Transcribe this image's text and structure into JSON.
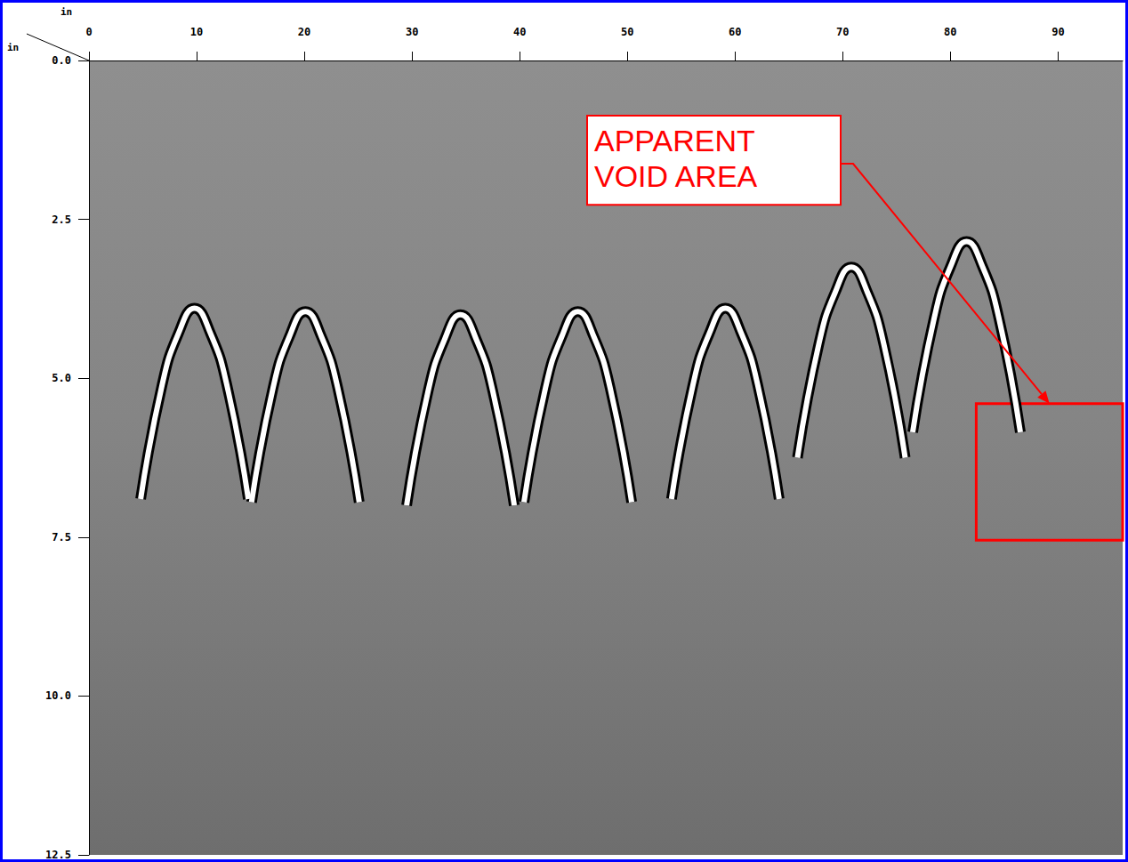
{
  "chart_data": {
    "type": "line",
    "xlabel": "in",
    "ylabel": "in",
    "xlim": [
      0,
      96
    ],
    "xticks": [
      0,
      10,
      20,
      30,
      40,
      50,
      60,
      70,
      80,
      90
    ],
    "ylim": [
      0,
      12.5
    ],
    "yticks": [
      {
        "value": 0,
        "label": "0.0"
      },
      2.5,
      {
        "value": 5,
        "label": "5.0"
      },
      7.5,
      {
        "value": 10,
        "label": "10.0"
      },
      12.5
    ],
    "grid": false,
    "series": [
      {
        "color": "#ffffff",
        "x": [
          4.8,
          6.8,
          8.3,
          9.8,
          11.3,
          12.8,
          14.8
        ],
        "values": [
          6.9,
          5.1,
          4.3,
          3.9,
          4.3,
          5.1,
          6.9
        ]
      },
      {
        "color": "#ffffff",
        "x": [
          15.1,
          17.1,
          18.6,
          20.1,
          21.6,
          23.1,
          25.1
        ],
        "values": [
          6.95,
          5.15,
          4.35,
          3.95,
          4.35,
          5.15,
          6.95
        ]
      },
      {
        "color": "#ffffff",
        "x": [
          29.5,
          31.5,
          33,
          34.5,
          36,
          37.5,
          39.5
        ],
        "values": [
          7.0,
          5.2,
          4.4,
          4.0,
          4.4,
          5.2,
          7.0
        ]
      },
      {
        "color": "#ffffff",
        "x": [
          40.4,
          42.4,
          43.9,
          45.4,
          46.9,
          48.4,
          50.4
        ],
        "values": [
          6.95,
          5.15,
          4.35,
          3.95,
          4.35,
          5.15,
          6.95
        ]
      },
      {
        "color": "#ffffff",
        "x": [
          54.1,
          56.1,
          57.6,
          59.1,
          60.6,
          62.1,
          64.1
        ],
        "values": [
          6.9,
          5.1,
          4.3,
          3.9,
          4.3,
          5.1,
          6.9
        ]
      },
      {
        "color": "#ffffff",
        "x": [
          65.8,
          67.8,
          69.3,
          70.8,
          72.3,
          73.8,
          75.8
        ],
        "values": [
          6.25,
          4.45,
          3.65,
          3.25,
          3.65,
          4.45,
          6.25
        ]
      },
      {
        "color": "#ffffff",
        "x": [
          76.5,
          78.5,
          80,
          81.5,
          83,
          84.5,
          86.5
        ],
        "values": [
          5.85,
          4.05,
          3.25,
          2.85,
          3.25,
          4.05,
          5.85
        ]
      }
    ],
    "annotation": {
      "text": "APPARENT VOID AREA",
      "color": "#ff0000",
      "x": [
        82.4,
        96
      ],
      "y": [
        5.4,
        7.55
      ]
    }
  }
}
